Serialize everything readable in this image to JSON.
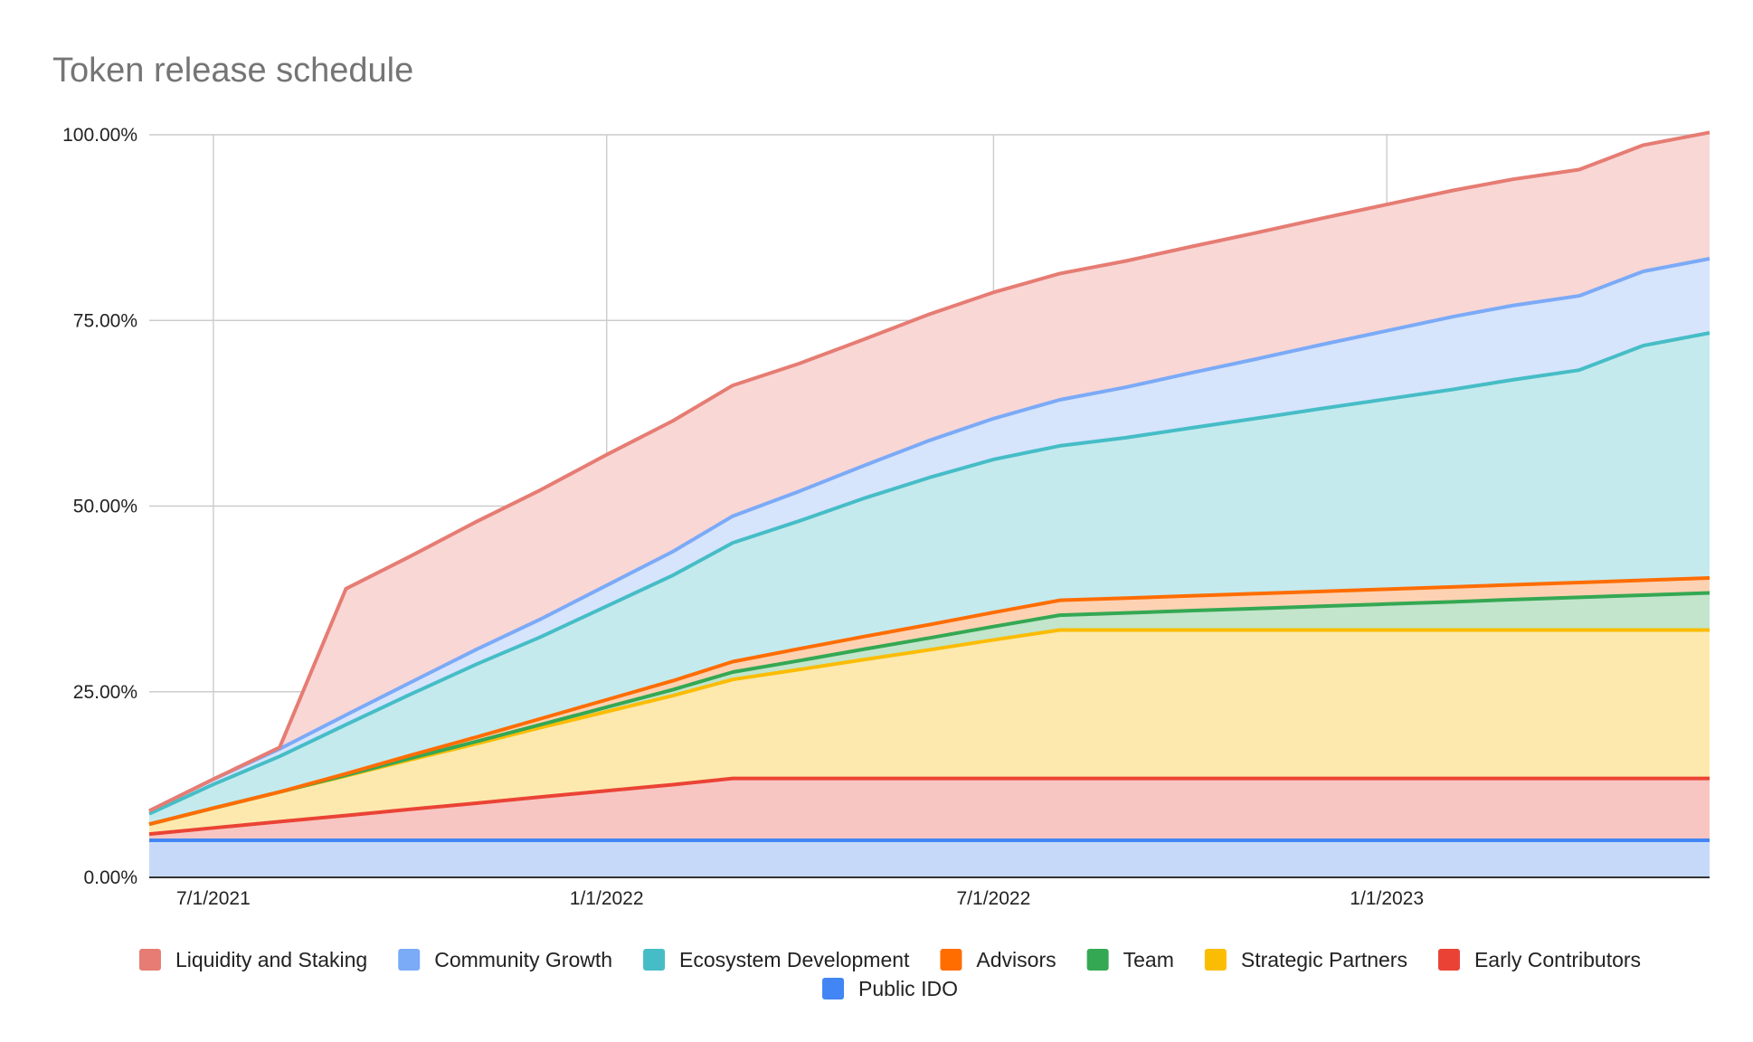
{
  "chart_data": {
    "type": "area",
    "stacked": true,
    "title": "Token release schedule",
    "xlabel": "",
    "ylabel": "",
    "x_tick_labels": [
      "7/1/2021",
      "1/1/2022",
      "7/1/2022",
      "1/1/2023"
    ],
    "x_tick_dates": [
      "2021-07-01",
      "2022-01-01",
      "2022-07-01",
      "2023-01-01"
    ],
    "y_tick_labels": [
      "0.00%",
      "25.00%",
      "50.00%",
      "75.00%",
      "100.00%"
    ],
    "ylim": [
      0,
      100
    ],
    "x_range": [
      "2021-06-01",
      "2023-06-01"
    ],
    "grid": true,
    "legend_position": "bottom",
    "x": [
      "2021-06-01",
      "2021-07-01",
      "2021-08-01",
      "2021-09-01",
      "2021-10-01",
      "2021-11-01",
      "2021-12-01",
      "2022-01-01",
      "2022-02-01",
      "2022-03-01",
      "2022-04-01",
      "2022-05-01",
      "2022-06-01",
      "2022-07-01",
      "2022-08-01",
      "2022-09-01",
      "2022-10-01",
      "2022-11-01",
      "2022-12-01",
      "2023-01-01",
      "2023-02-01",
      "2023-03-01",
      "2023-04-01",
      "2023-05-01",
      "2023-06-01"
    ],
    "series": [
      {
        "name": "Public IDO",
        "color": "#4285f4",
        "fill": "#c6d9f9",
        "values": [
          5,
          5,
          5,
          5,
          5,
          5,
          5,
          5,
          5,
          5,
          5,
          5,
          5,
          5,
          5,
          5,
          5,
          5,
          5,
          5,
          5,
          5,
          5,
          5,
          5
        ]
      },
      {
        "name": "Early Contributors",
        "color": "#ea4335",
        "fill": "#f8c6c2",
        "values": [
          0.83,
          1.66,
          2.5,
          3.33,
          4.16,
          4.99,
          5.83,
          6.66,
          7.49,
          8.32,
          8.32,
          8.32,
          8.32,
          8.32,
          8.32,
          8.32,
          8.32,
          8.32,
          8.32,
          8.32,
          8.32,
          8.32,
          8.32,
          8.32,
          8.32
        ]
      },
      {
        "name": "Strategic Partners",
        "color": "#fbbc04",
        "fill": "#fde9ae",
        "values": [
          1.33,
          2.66,
          4.0,
          5.33,
          6.66,
          8.0,
          9.33,
          10.66,
          11.99,
          13.33,
          14.66,
          15.99,
          17.32,
          18.66,
          19.99,
          19.99,
          19.99,
          19.99,
          19.99,
          19.99,
          19.99,
          19.99,
          19.99,
          19.99,
          19.99
        ]
      },
      {
        "name": "Team",
        "color": "#34a853",
        "fill": "#c2e5cb",
        "values": [
          0,
          0,
          0,
          0.1,
          0.2,
          0.3,
          0.4,
          0.6,
          0.8,
          1.0,
          1.2,
          1.4,
          1.6,
          1.8,
          2.0,
          2.3,
          2.6,
          2.9,
          3.2,
          3.5,
          3.8,
          4.1,
          4.4,
          4.7,
          5.0
        ]
      },
      {
        "name": "Advisors",
        "color": "#ff6d01",
        "fill": "#fdd2b3",
        "values": [
          0,
          0,
          0,
          0.2,
          0.4,
          0.6,
          0.8,
          1.0,
          1.2,
          1.4,
          1.6,
          1.7,
          1.8,
          1.9,
          2.0,
          2.0,
          2.0,
          2.0,
          2.0,
          2.0,
          2.0,
          2.0,
          2.0,
          2.0,
          2.0
        ]
      },
      {
        "name": "Ecosystem Development",
        "color": "#46bdc6",
        "fill": "#c4eaee",
        "values": [
          1.4,
          3.2,
          4.8,
          6.6,
          8.2,
          9.8,
          11.0,
          12.6,
          14.2,
          16.0,
          17.2,
          18.6,
          19.8,
          20.6,
          20.8,
          21.6,
          22.6,
          23.6,
          24.6,
          25.6,
          26.6,
          27.6,
          28.6,
          31.6,
          33.0
        ]
      },
      {
        "name": "Community Growth",
        "color": "#7baaf7",
        "fill": "#d6e4fc",
        "values": [
          0.4,
          0.7,
          1.0,
          1.3,
          1.6,
          2.0,
          2.4,
          2.8,
          3.2,
          3.6,
          4.0,
          4.4,
          5.0,
          5.5,
          6.2,
          6.8,
          7.4,
          8.0,
          8.6,
          9.2,
          9.8,
          10.0,
          10.0,
          10.0,
          10.0
        ]
      },
      {
        "name": "Liquidity and Staking",
        "color": "#e67c73",
        "fill": "#f9d7d5",
        "values": [
          0,
          0,
          0.2,
          17.0,
          17.0,
          17.2,
          17.4,
          17.6,
          17.6,
          17.6,
          17.2,
          17.0,
          17.0,
          17.0,
          17.0,
          17.0,
          17.0,
          17.0,
          17.0,
          17.0,
          17.0,
          17.0,
          17.0,
          17.0,
          17.0
        ]
      }
    ],
    "legend_order": [
      "Liquidity and Staking",
      "Community Growth",
      "Ecosystem Development",
      "Advisors",
      "Team",
      "Strategic Partners",
      "Early Contributors",
      "Public IDO"
    ]
  }
}
